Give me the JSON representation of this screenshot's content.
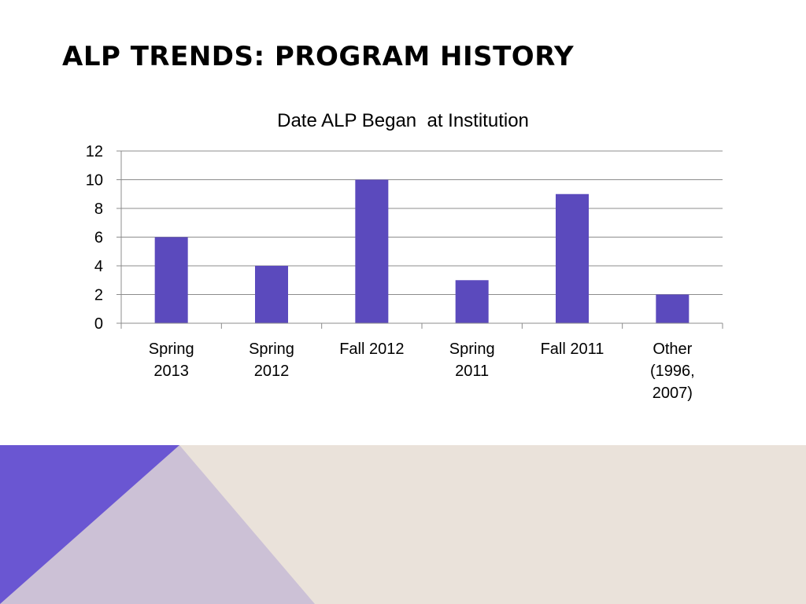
{
  "slide": {
    "title": "ALP TRENDS: PROGRAM HISTORY"
  },
  "colors": {
    "bar": "#5B4ABD",
    "grid": "#8C8C8C",
    "band_beige": "#EAE2DA",
    "band_lavender": "#CCC1D6",
    "band_purple": "#6A56D2"
  },
  "chart_data": {
    "type": "bar",
    "title": "Date ALP Began  at Institution",
    "categories": [
      [
        "Spring",
        "2013"
      ],
      [
        "Spring",
        "2012"
      ],
      [
        "Fall 2012"
      ],
      [
        "Spring",
        "2011"
      ],
      [
        "Fall 2011"
      ],
      [
        "Other",
        "(1996,",
        "2007)"
      ]
    ],
    "values": [
      6,
      4,
      10,
      3,
      9,
      2
    ],
    "ylim": [
      0,
      12
    ],
    "yticks": [
      "0",
      "2",
      "4",
      "6",
      "8",
      "10",
      "12"
    ],
    "grid": true,
    "legend": "none"
  }
}
